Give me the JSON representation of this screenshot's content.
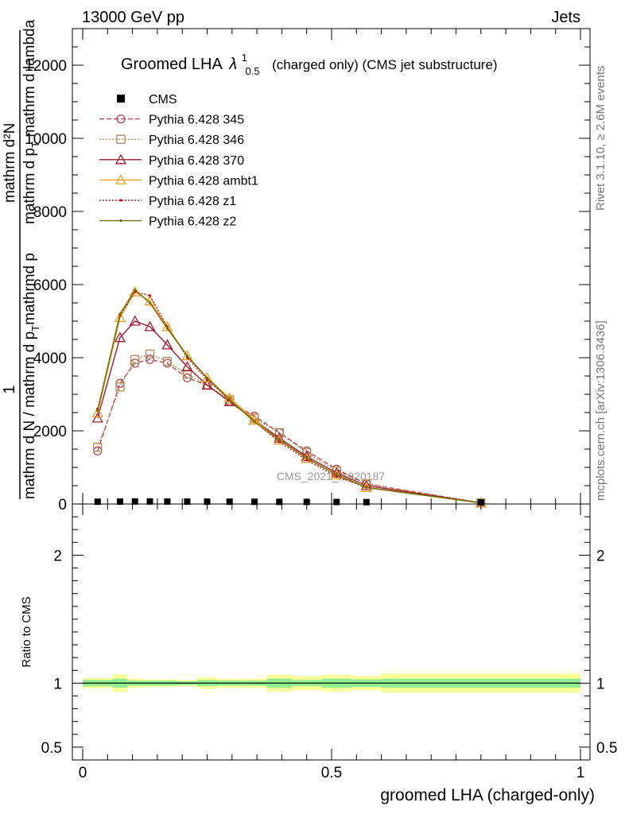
{
  "header": {
    "left": "13000 GeV pp",
    "right": "Jets"
  },
  "side": {
    "rivet": "Rivet 3.1.10, ≥ 2.6M events",
    "mcplots": "mcplots.cern.ch [arXiv:1306.3436]"
  },
  "watermark": "CMS_2021_I1920187",
  "chart_data": {
    "type": "line",
    "title": {
      "main": "Groomed LHA",
      "symbol": "λ",
      "sup": "1",
      "sub": "0.5",
      "rest": "(charged only) (CMS jet substructure)"
    },
    "ylabel_lines": [
      "mathrm d N / mathrm d p_T mathrmd p_T mathrm d lambda",
      "1",
      "mathrm dN"
    ],
    "ylabel_parts": {
      "numerator": "mathrm d²N",
      "denominator": "mathrm d p",
      "denominator_sub": "T",
      "denominator_rest": " mathrm d lambda",
      "factor_num": "1",
      "factor_den": "mathrm d N / mathrm d p",
      "factor_sub": "T",
      "factor_rest": "mathrmd p"
    },
    "xlabel": "groomed LHA (charged-only)",
    "ratio_ylabel": "Ratio to CMS",
    "xlim": [
      0,
      1
    ],
    "ylim": [
      0,
      13000
    ],
    "ratio_ylim": [
      0.4,
      2.4
    ],
    "x_ticks": [
      {
        "v": 0,
        "label": "0"
      },
      {
        "v": 0.5,
        "label": "0.5"
      },
      {
        "v": 1,
        "label": "1"
      }
    ],
    "y_ticks": [
      {
        "v": 0,
        "label": "0"
      },
      {
        "v": 2000,
        "label": "2000"
      },
      {
        "v": 4000,
        "label": "4000"
      },
      {
        "v": 6000,
        "label": "6000"
      },
      {
        "v": 8000,
        "label": "8000"
      },
      {
        "v": 10000,
        "label": "10000"
      },
      {
        "v": 12000,
        "label": "12000"
      }
    ],
    "ratio_ticks": [
      {
        "v": 0.5,
        "label": "0.5"
      },
      {
        "v": 1,
        "label": "1"
      },
      {
        "v": 2,
        "label": "2"
      }
    ],
    "x": [
      0.03,
      0.075,
      0.105,
      0.135,
      0.17,
      0.21,
      0.25,
      0.295,
      0.345,
      0.395,
      0.45,
      0.51,
      0.57,
      0.8
    ],
    "data": {
      "name": "CMS",
      "values": [
        18,
        22,
        26,
        25,
        24,
        22,
        20,
        18,
        16,
        14,
        12,
        10,
        8,
        2
      ]
    },
    "bin_edges": [
      0.0,
      0.06,
      0.09,
      0.12,
      0.15,
      0.19,
      0.23,
      0.27,
      0.32,
      0.37,
      0.42,
      0.48,
      0.54,
      0.6,
      1.0
    ],
    "ratio_band_stat": [
      0.025,
      0.035,
      0.02,
      0.02,
      0.02,
      0.015,
      0.025,
      0.02,
      0.02,
      0.035,
      0.025,
      0.035,
      0.03,
      0.035
    ],
    "ratio_band_total": [
      0.04,
      0.07,
      0.035,
      0.03,
      0.03,
      0.025,
      0.045,
      0.035,
      0.035,
      0.065,
      0.055,
      0.065,
      0.055,
      0.075
    ],
    "series": [
      {
        "name": "Pythia 6.428 345",
        "color": "#b5474f",
        "dash": "6,3",
        "marker": "circle",
        "values": [
          1450,
          3300,
          3850,
          3950,
          3850,
          3450,
          3250,
          2800,
          2400,
          1950,
          1450,
          950,
          550,
          30
        ]
      },
      {
        "name": "Pythia 6.428 346",
        "color": "#b08a5a",
        "dash": "2,2",
        "marker": "square",
        "values": [
          1550,
          3200,
          3950,
          4100,
          3900,
          3550,
          3250,
          2850,
          2350,
          1950,
          1400,
          900,
          550,
          30
        ]
      },
      {
        "name": "Pythia 6.428 370",
        "color": "#a0192e",
        "dash": "",
        "marker": "triangle",
        "values": [
          2350,
          4550,
          5000,
          4850,
          4350,
          3750,
          3250,
          2800,
          2300,
          1800,
          1300,
          850,
          500,
          30
        ]
      },
      {
        "name": "Pythia 6.428 ambt1",
        "color": "#f0a020",
        "dash": "",
        "marker": "triangle",
        "values": [
          2500,
          5100,
          5800,
          5550,
          4850,
          4050,
          3450,
          2900,
          2300,
          1750,
          1250,
          800,
          450,
          30
        ]
      },
      {
        "name": "Pythia 6.428 z1",
        "color": "#d01010",
        "dash": "2,2",
        "marker": "dot",
        "values": [
          2600,
          5150,
          5800,
          5700,
          4850,
          4000,
          3400,
          2850,
          2250,
          1700,
          1200,
          750,
          450,
          30
        ]
      },
      {
        "name": "Pythia 6.428 z2",
        "color": "#707000",
        "dash": "",
        "marker": "dot",
        "values": [
          2550,
          5200,
          5850,
          5500,
          4800,
          4050,
          3450,
          2850,
          2250,
          1750,
          1250,
          800,
          450,
          30
        ]
      }
    ],
    "colors": {
      "band_stat": "#90ee90",
      "band_total": "#ffff99",
      "data_marker": "#000000"
    }
  }
}
